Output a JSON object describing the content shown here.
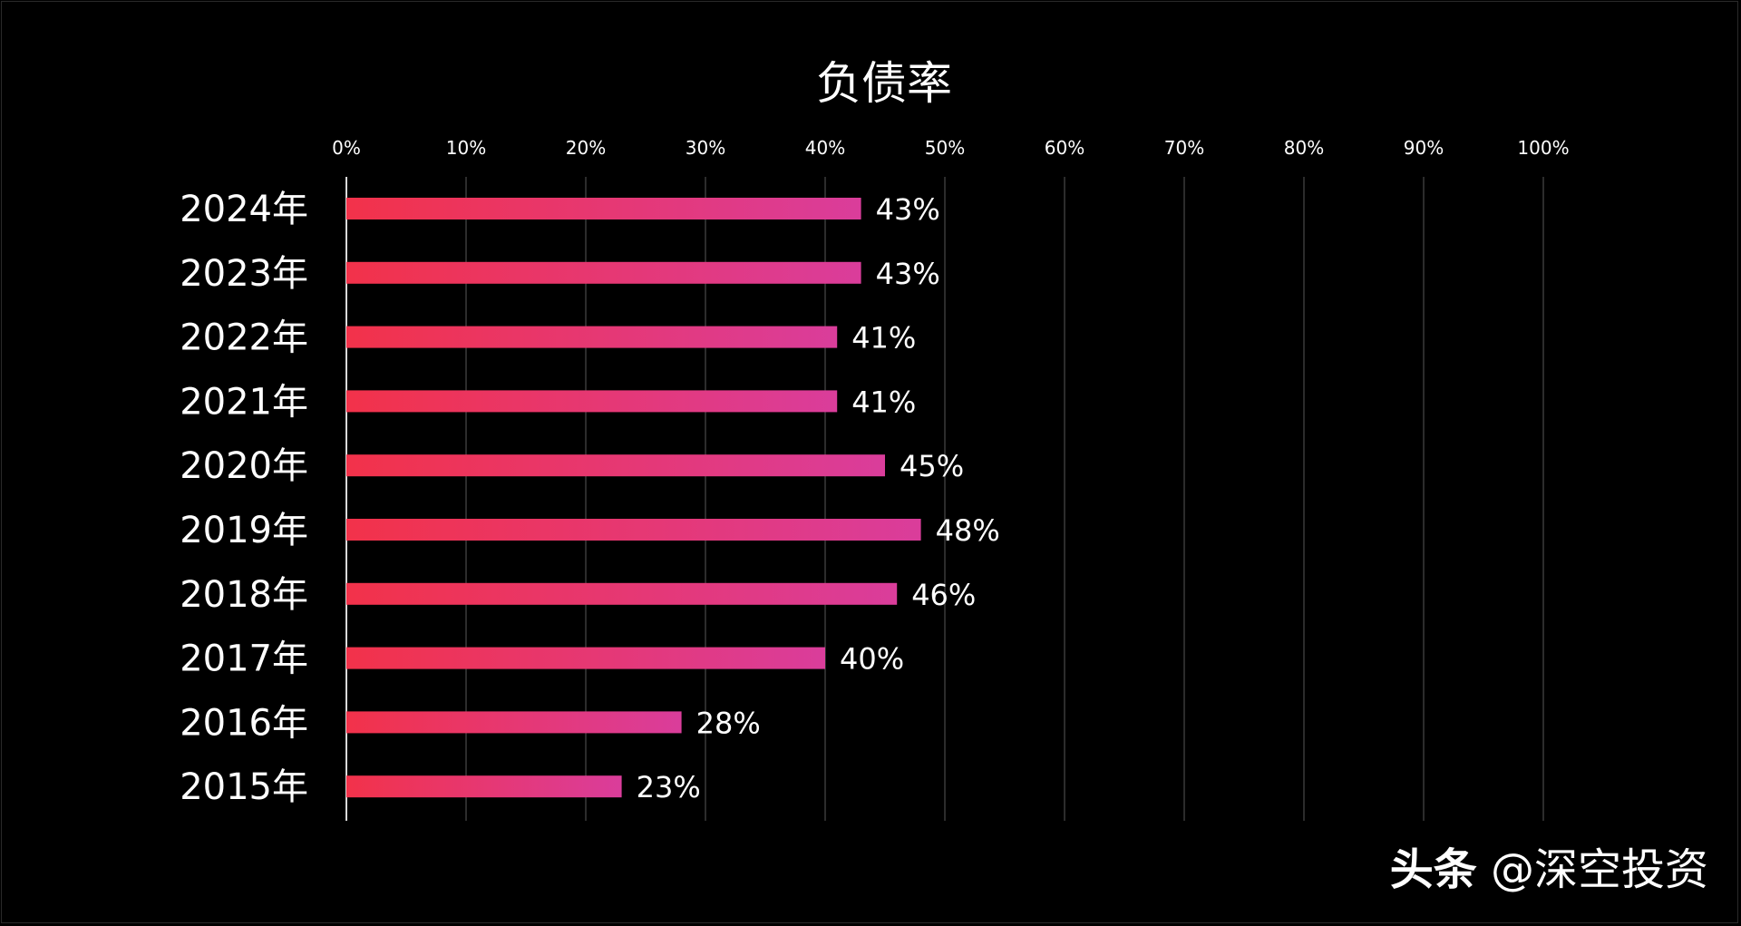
{
  "chart_data": {
    "type": "bar",
    "orientation": "horizontal",
    "title": "负债率",
    "categories": [
      "2024年",
      "2023年",
      "2022年",
      "2021年",
      "2020年",
      "2019年",
      "2018年",
      "2017年",
      "2016年",
      "2015年"
    ],
    "values": [
      43,
      43,
      41,
      41,
      45,
      48,
      46,
      40,
      28,
      23
    ],
    "value_labels": [
      "43%",
      "43%",
      "41%",
      "41%",
      "45%",
      "48%",
      "46%",
      "40%",
      "28%",
      "23%"
    ],
    "x_ticks": [
      "0%",
      "10%",
      "20%",
      "30%",
      "40%",
      "50%",
      "60%",
      "70%",
      "80%",
      "90%",
      "100%"
    ],
    "xlim": [
      0,
      100
    ],
    "grid": true,
    "xaxis_position": "top",
    "colors": {
      "bar_start": "#f2324a",
      "bar_end": "#da3d9b",
      "background": "#000000",
      "grid": "#3a3a3a",
      "text": "#ffffff"
    }
  },
  "watermark": {
    "brand": "头条",
    "handle": "@深空投资"
  }
}
